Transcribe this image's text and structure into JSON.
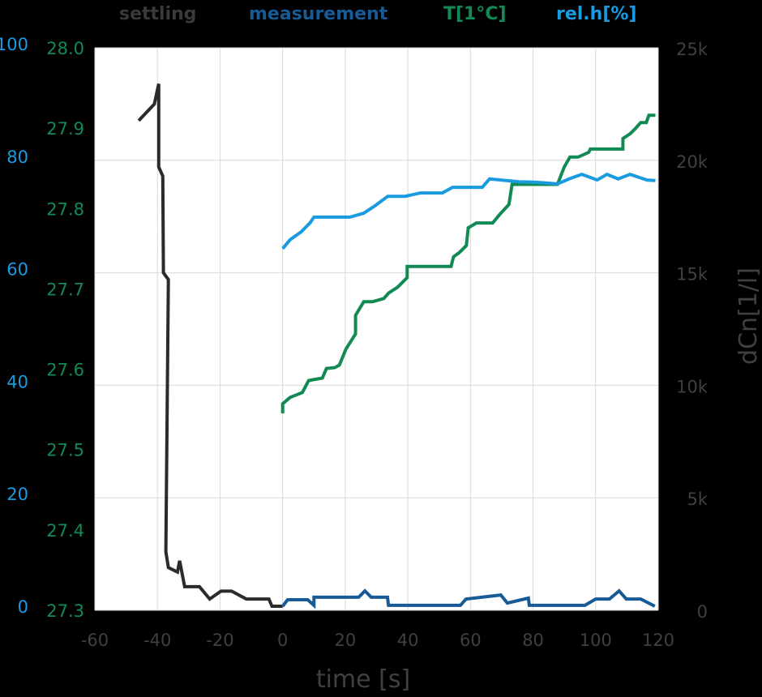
{
  "chart_data": {
    "type": "line",
    "title": "",
    "xlabel": "time [s]",
    "ylabel_right": "dCn[1/l]",
    "xlim": [
      -60,
      120
    ],
    "xticks": [
      "-60",
      "-40",
      "-20",
      "0",
      "20",
      "40",
      "60",
      "80",
      "100",
      "120"
    ],
    "axes": {
      "right_dcn": {
        "label": "dCn[1/l]",
        "range": [
          0,
          25000
        ],
        "ticks": [
          "0",
          "5k",
          "10k",
          "15k",
          "20k",
          "25k"
        ],
        "color": "#404040"
      },
      "left_temp": {
        "label": "T[1°C]",
        "range": [
          27.3,
          28.0
        ],
        "ticks": [
          "27.3",
          "27.4",
          "27.5",
          "27.6",
          "27.7",
          "27.8",
          "27.9",
          "28.0"
        ],
        "color": "#128a54"
      },
      "left_rh": {
        "label": "rel.h[%]",
        "range": [
          0,
          100
        ],
        "ticks": [
          "0",
          "20",
          "40",
          "60",
          "80",
          "100"
        ],
        "color": "#1a9be0"
      }
    },
    "grid": true,
    "legend_position": "top",
    "series": [
      {
        "name": "settling",
        "axis": "right_dcn",
        "color": "#2b2b2b",
        "x": [
          -46,
          -41,
          -39.6,
          -39.6,
          -38.3,
          -38.1,
          -36.5,
          -37.3,
          -36.5,
          -33.6,
          -32.9,
          -31.3,
          -26.6,
          -23.3,
          -19.7,
          -16.3,
          -11.6,
          -4.4,
          -3.4,
          0
        ],
        "y": [
          21760,
          22500,
          23400,
          19700,
          19300,
          15000,
          14700,
          2600,
          1900,
          1700,
          2200,
          1050,
          1050,
          500,
          850,
          850,
          500,
          500,
          180,
          180
        ]
      },
      {
        "name": "measurement",
        "axis": "right_dcn",
        "color": "#165a96",
        "x": [
          0,
          1.6,
          8,
          10,
          10,
          24.3,
          26.3,
          28.3,
          33.5,
          33.8,
          56.8,
          58.6,
          69.7,
          71.8,
          78.5,
          78.8,
          96.6,
          100,
          104.4,
          107.5,
          109.8,
          114.4,
          118.9
        ],
        "y": [
          180,
          470,
          470,
          220,
          580,
          580,
          860,
          580,
          580,
          220,
          220,
          500,
          680,
          320,
          540,
          220,
          220,
          500,
          500,
          860,
          500,
          500,
          180
        ]
      },
      {
        "name": "T[1°C]",
        "axis": "left_temp",
        "color": "#128a54",
        "x": [
          0,
          0,
          2.4,
          6.3,
          8.3,
          12.7,
          14,
          16.6,
          18.1,
          20.2,
          23.3,
          23.3,
          25.9,
          28.7,
          32.3,
          33.9,
          36.7,
          39.8,
          39.8,
          53.8,
          54.6,
          56.4,
          58.7,
          59.3,
          61.9,
          67.1,
          69.2,
          72.3,
          73.3,
          81.1,
          87.8,
          90,
          91.8,
          94.4,
          97.8,
          98.3,
          108.7,
          108.7,
          111,
          112.6,
          114.4,
          116.2,
          117,
          119.1
        ],
        "y": [
          27.545,
          27.557,
          27.565,
          27.571,
          27.586,
          27.589,
          27.601,
          27.602,
          27.605,
          27.625,
          27.644,
          27.667,
          27.684,
          27.684,
          27.688,
          27.695,
          27.702,
          27.714,
          27.728,
          27.728,
          27.74,
          27.745,
          27.754,
          27.776,
          27.782,
          27.782,
          27.792,
          27.805,
          27.83,
          27.83,
          27.83,
          27.852,
          27.864,
          27.864,
          27.87,
          27.874,
          27.874,
          27.887,
          27.893,
          27.899,
          27.907,
          27.907,
          27.916,
          27.916
        ]
      },
      {
        "name": "rel.h[%]",
        "axis": "left_rh",
        "color": "#1a9be0",
        "x": [
          0,
          2.4,
          6,
          8.8,
          10,
          21.5,
          25.9,
          29.2,
          33.6,
          39.1,
          44,
          51,
          54.3,
          63.8,
          66.1,
          75.4,
          81.1,
          87.8,
          92,
          95.6,
          100.5,
          103.6,
          107.2,
          111,
          116.4,
          119.1
        ],
        "y": [
          64.3,
          65.9,
          67.3,
          68.9,
          69.9,
          69.9,
          70.6,
          71.8,
          73.6,
          73.6,
          74.2,
          74.2,
          75.2,
          75.2,
          76.7,
          76.2,
          76.1,
          75.8,
          76.8,
          77.5,
          76.5,
          77.5,
          76.7,
          77.5,
          76.5,
          76.4
        ]
      }
    ]
  },
  "legend": [
    {
      "label": "settling",
      "color": "#3a3a3a"
    },
    {
      "label": "measurement",
      "color": "#165a96"
    },
    {
      "label": "T[1°C]",
      "color": "#128a54"
    },
    {
      "label": "rel.h[%]",
      "color": "#1a9be0"
    }
  ],
  "colors": {
    "background": "#000000",
    "plot_bg": "#ffffff",
    "grid": "#d9d9d9",
    "tick_text": "#404040"
  }
}
